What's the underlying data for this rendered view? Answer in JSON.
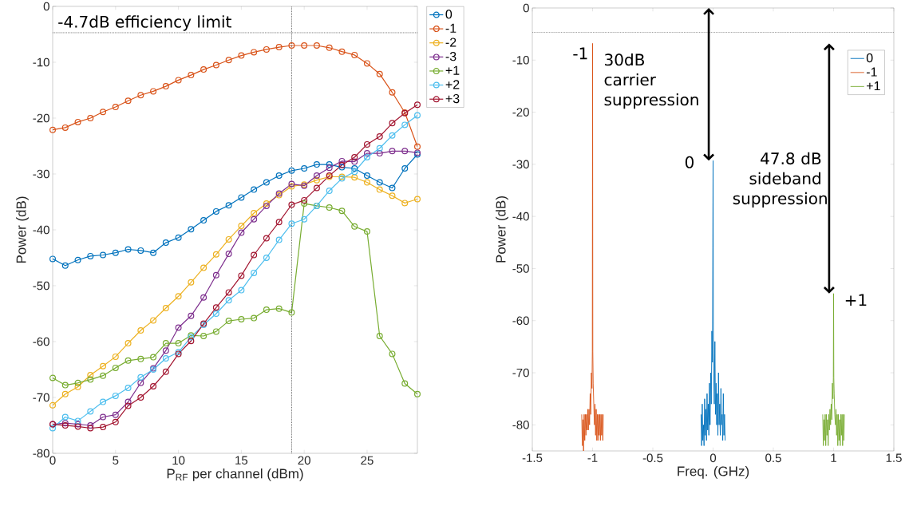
{
  "chart_data": [
    {
      "type": "line",
      "xlabel": "P$_{RF}$ per channel (dBm)",
      "ylabel": "Power (dB)",
      "x": [
        0,
        1,
        2,
        3,
        4,
        5,
        6,
        7,
        8,
        9,
        10,
        11,
        12,
        13,
        14,
        15,
        16,
        17,
        18,
        19,
        20,
        21,
        22,
        23,
        24,
        25,
        26,
        27,
        28,
        29
      ],
      "xlim": [
        0,
        29
      ],
      "xticks": [
        0,
        5,
        10,
        15,
        20,
        25
      ],
      "ylim": [
        -80,
        0
      ],
      "yticks": [
        -80,
        -70,
        -60,
        -50,
        -40,
        -30,
        -20,
        -10,
        0
      ],
      "marker": "circle",
      "legend": "right",
      "ref_lines": [
        {
          "axis": "y",
          "value": -4.7,
          "label": "-4.7dB efficiency limit",
          "line_style": "dotted",
          "color": "#404040"
        },
        {
          "axis": "x",
          "value": 19,
          "line_style": "dotted",
          "color": "#404040"
        }
      ],
      "series": [
        {
          "name": "0",
          "color": "#0072bd",
          "values": [
            -45.2,
            -46.4,
            -45.4,
            -44.7,
            -44.5,
            -44.1,
            -43.5,
            -43.7,
            -44.1,
            -42.3,
            -41.4,
            -39.9,
            -38.3,
            -36.7,
            -35.6,
            -34.2,
            -32.8,
            -31.5,
            -30.3,
            -29.4,
            -29.0,
            -28.3,
            -28.3,
            -28.8,
            -29.0,
            -30.3,
            -31.5,
            -32.5,
            -29.0,
            -26.5
          ]
        },
        {
          "name": "-1",
          "color": "#d95319",
          "values": [
            -22.1,
            -21.7,
            -20.7,
            -20.0,
            -18.9,
            -18.0,
            -16.9,
            -15.9,
            -15.2,
            -14.3,
            -13.2,
            -12.3,
            -11.3,
            -10.5,
            -9.6,
            -8.8,
            -8.2,
            -7.7,
            -7.3,
            -7.0,
            -7.0,
            -7.0,
            -7.4,
            -8.1,
            -8.7,
            -10.2,
            -12.1,
            -15.4,
            -19.0,
            -25.1
          ]
        },
        {
          "name": "-2",
          "color": "#edb120",
          "values": [
            -71.4,
            -69.4,
            -68.1,
            -66.0,
            -64.4,
            -62.7,
            -60.3,
            -58.0,
            -56.2,
            -54.0,
            -51.9,
            -49.4,
            -46.8,
            -44.4,
            -41.7,
            -39.3,
            -37.0,
            -35.3,
            -33.8,
            -32.2,
            -31.9,
            -31.1,
            -30.5,
            -30.5,
            -30.6,
            -31.5,
            -32.8,
            -33.9,
            -35.2,
            -34.5
          ]
        },
        {
          "name": "-3",
          "color": "#7e2f8e",
          "values": [
            -74.8,
            -74.6,
            -74.8,
            -75.0,
            -73.5,
            -73.1,
            -70.8,
            -67.4,
            -64.8,
            -61.6,
            -57.5,
            -55.4,
            -52.1,
            -48.1,
            -44.3,
            -40.5,
            -38.1,
            -35.7,
            -33.5,
            -31.8,
            -32.1,
            -30.3,
            -28.9,
            -27.7,
            -27.8,
            -26.3,
            -26.3,
            -25.9,
            -25.9,
            -26.2
          ]
        },
        {
          "name": "+1",
          "color": "#77ac30",
          "values": [
            -66.5,
            -67.8,
            -67.4,
            -66.8,
            -66.1,
            -64.7,
            -63.4,
            -63.1,
            -62.8,
            -60.3,
            -60.3,
            -58.9,
            -59.0,
            -58.2,
            -56.3,
            -56.0,
            -55.8,
            -54.3,
            -54.1,
            -54.8,
            -35.3,
            -35.7,
            -36.0,
            -36.6,
            -39.4,
            -40.3,
            -59.0,
            -62.2,
            -67.5,
            -69.4
          ]
        },
        {
          "name": "+2",
          "color": "#4dbeee",
          "values": [
            -75.5,
            -73.5,
            -74.2,
            -72.5,
            -70.8,
            -69.7,
            -68.3,
            -66.4,
            -65.0,
            -63.0,
            -61.9,
            -59.2,
            -57.0,
            -55.0,
            -52.6,
            -50.8,
            -47.7,
            -45.0,
            -41.8,
            -38.9,
            -38.1,
            -35.7,
            -33.0,
            -30.8,
            -29.6,
            -27.0,
            -25.4,
            -23.1,
            -21.2,
            -19.5
          ]
        },
        {
          "name": "+3",
          "color": "#a2142f",
          "values": [
            -74.8,
            -75.0,
            -75.2,
            -75.5,
            -75.3,
            -74.4,
            -71.5,
            -70.0,
            -68.0,
            -65.4,
            -62.2,
            -59.9,
            -56.8,
            -53.9,
            -51.2,
            -48.2,
            -44.5,
            -41.5,
            -38.6,
            -35.5,
            -34.7,
            -32.5,
            -30.3,
            -28.4,
            -27.0,
            -24.7,
            -23.3,
            -20.9,
            -19.1,
            -17.6
          ]
        }
      ]
    },
    {
      "type": "line",
      "xlabel": "Freq. (GHz)",
      "ylabel": "Power (dB)",
      "xlim": [
        -1.5,
        1.5
      ],
      "xticks": [
        -1.5,
        -1,
        -0.5,
        0,
        0.5,
        1,
        1.5
      ],
      "ylim": [
        -85,
        0
      ],
      "yticks": [
        -80,
        -70,
        -60,
        -50,
        -40,
        -30,
        -20,
        -10,
        0
      ],
      "legend": "top right",
      "ref_lines": [
        {
          "axis": "y",
          "value": -4.7,
          "line_style": "dotted",
          "color": "#404040"
        }
      ],
      "annotations": [
        {
          "text": "-1",
          "x": -1,
          "y": -6.8
        },
        "30dB carrier suppression",
        {
          "text": "0",
          "x": 0,
          "y": -29.3
        },
        "47.8 dB sideband suppression",
        {
          "text": "+1",
          "x": 1,
          "y": -54.8
        }
      ],
      "series": [
        {
          "name": "0",
          "color": "#0072bd",
          "x": [
            -0.1,
            -0.095,
            -0.09,
            -0.085,
            -0.08,
            -0.075,
            -0.07,
            -0.065,
            -0.06,
            -0.055,
            -0.05,
            -0.045,
            -0.04,
            -0.035,
            -0.03,
            -0.025,
            -0.02,
            -0.015,
            -0.01,
            -0.005,
            -0.002,
            0,
            0.002,
            0.005,
            0.01,
            0.015,
            0.02,
            0.025,
            0.03,
            0.035,
            0.04,
            0.045,
            0.05,
            0.055,
            0.06,
            0.065,
            0.07,
            0.075,
            0.08,
            0.085,
            0.09,
            0.095,
            0.1
          ],
          "values": [
            -78,
            -84,
            -76,
            -83,
            -80,
            -84,
            -75,
            -82,
            -77,
            -83,
            -74,
            -81,
            -76,
            -82,
            -72,
            -80,
            -70,
            -76,
            -62,
            -68,
            -46,
            -29.3,
            -62,
            -70,
            -76,
            -64,
            -78,
            -72,
            -80,
            -74,
            -82,
            -70,
            -80,
            -76,
            -82,
            -73,
            -80,
            -78,
            -83,
            -74,
            -82,
            -78,
            -83
          ]
        },
        {
          "name": "-1",
          "color": "#d95319",
          "x": [
            -1.09,
            -1.085,
            -1.08,
            -1.075,
            -1.07,
            -1.065,
            -1.06,
            -1.055,
            -1.05,
            -1.045,
            -1.04,
            -1.035,
            -1.03,
            -1.025,
            -1.02,
            -1.015,
            -1.01,
            -1.005,
            -1.002,
            -1.0,
            -0.998,
            -0.995,
            -0.99,
            -0.985,
            -0.98,
            -0.975,
            -0.97,
            -0.965,
            -0.96,
            -0.955,
            -0.95,
            -0.945,
            -0.94,
            -0.935,
            -0.93,
            -0.925,
            -0.92,
            -0.915,
            -0.91
          ],
          "values": [
            -78,
            -84,
            -79,
            -85,
            -78,
            -83,
            -78,
            -82,
            -78,
            -81,
            -77,
            -81,
            -77,
            -80,
            -74,
            -78,
            -70,
            -73,
            -66,
            -6.8,
            -66,
            -72,
            -76,
            -80,
            -76,
            -82,
            -77,
            -83,
            -78,
            -83,
            -78,
            -82,
            -78,
            -83,
            -78,
            -82,
            -78,
            -83,
            -78
          ]
        },
        {
          "name": "+1",
          "color": "#77ac30",
          "x": [
            0.91,
            0.915,
            0.92,
            0.925,
            0.93,
            0.935,
            0.94,
            0.945,
            0.95,
            0.955,
            0.96,
            0.965,
            0.97,
            0.975,
            0.98,
            0.985,
            0.99,
            0.995,
            0.998,
            1.0,
            1.002,
            1.005,
            1.01,
            1.015,
            1.02,
            1.025,
            1.03,
            1.035,
            1.04,
            1.045,
            1.05,
            1.055,
            1.06,
            1.065,
            1.07,
            1.075,
            1.08,
            1.085,
            1.09
          ],
          "values": [
            -78,
            -84,
            -79,
            -83,
            -78,
            -84,
            -78,
            -82,
            -79,
            -84,
            -78,
            -81,
            -77,
            -80,
            -76,
            -79,
            -72,
            -75,
            -71,
            -54.8,
            -71,
            -74,
            -78,
            -80,
            -77,
            -82,
            -78,
            -84,
            -78,
            -83,
            -79,
            -84,
            -78,
            -82,
            -78,
            -84,
            -78,
            -83,
            -78
          ]
        }
      ]
    }
  ]
}
